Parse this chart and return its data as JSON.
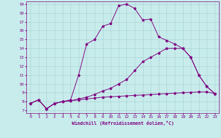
{
  "xlabel": "Windchill (Refroidissement éolien,°C)",
  "bg_color": "#c8ecec",
  "line_color": "#800080",
  "grid_color": "#aad4d4",
  "xmin": 0,
  "xmax": 23,
  "ymin": 7,
  "ymax": 19,
  "line1_x": [
    0,
    1,
    2,
    3,
    4,
    5,
    6,
    7,
    8,
    9,
    10,
    11,
    12,
    13,
    14,
    15,
    16,
    17,
    18,
    19,
    20,
    21,
    22,
    23
  ],
  "line1_y": [
    7.8,
    8.2,
    7.2,
    7.8,
    8.0,
    8.1,
    8.2,
    8.3,
    8.4,
    8.5,
    8.55,
    8.6,
    8.65,
    8.7,
    8.75,
    8.8,
    8.85,
    8.9,
    8.95,
    9.0,
    9.05,
    9.1,
    9.1,
    8.9
  ],
  "line2_x": [
    0,
    1,
    2,
    3,
    4,
    5,
    6,
    7,
    8,
    9,
    10,
    11,
    12,
    13,
    14,
    15,
    16,
    17,
    18,
    19,
    20,
    21,
    22,
    23
  ],
  "line2_y": [
    7.8,
    8.2,
    7.2,
    7.8,
    8.0,
    8.1,
    8.3,
    8.5,
    8.8,
    9.2,
    9.5,
    10.0,
    10.5,
    11.5,
    12.5,
    13.0,
    13.5,
    14.0,
    14.0,
    14.0,
    13.0,
    11.0,
    9.7,
    8.9
  ],
  "line3_x": [
    0,
    1,
    2,
    3,
    4,
    5,
    6,
    7,
    8,
    9,
    10,
    11,
    12,
    13,
    14,
    15,
    16,
    17,
    18,
    19,
    20,
    21,
    22,
    23
  ],
  "line3_y": [
    7.8,
    8.2,
    7.2,
    7.8,
    8.0,
    8.2,
    11.0,
    14.5,
    15.0,
    16.5,
    16.8,
    18.8,
    19.0,
    18.5,
    17.2,
    17.3,
    15.3,
    14.9,
    14.5,
    14.0,
    13.0,
    11.0,
    9.7,
    8.9
  ]
}
